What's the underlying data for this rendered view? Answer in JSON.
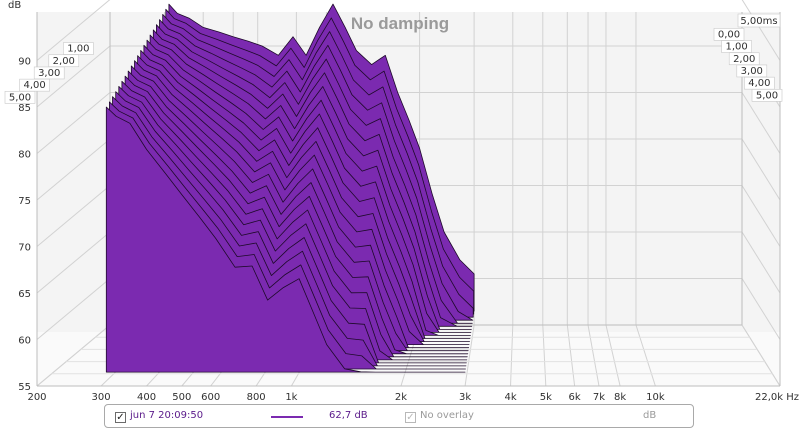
{
  "chart_data": {
    "type": "waterfall",
    "title": "No damping",
    "y_unit_label": "dB",
    "x_unit_label": "Hz",
    "x_scale": "log",
    "x_range": [
      200,
      22000
    ],
    "y_range": [
      55,
      90
    ],
    "x_ticks": [
      {
        "value": 200,
        "label": "200"
      },
      {
        "value": 300,
        "label": "300"
      },
      {
        "value": 400,
        "label": "400"
      },
      {
        "value": 500,
        "label": "500"
      },
      {
        "value": 600,
        "label": "600"
      },
      {
        "value": 800,
        "label": "800"
      },
      {
        "value": 1000,
        "label": "1k"
      },
      {
        "value": 2000,
        "label": "2k"
      },
      {
        "value": 3000,
        "label": "3k"
      },
      {
        "value": 4000,
        "label": "4k"
      },
      {
        "value": 5000,
        "label": "5k"
      },
      {
        "value": 6000,
        "label": "6k"
      },
      {
        "value": 7000,
        "label": "7k"
      },
      {
        "value": 8000,
        "label": "8k"
      },
      {
        "value": 10000,
        "label": "10k"
      },
      {
        "value": 22000,
        "label": "22,0k Hz"
      }
    ],
    "y_ticks": [
      {
        "value": 55,
        "label": "55"
      },
      {
        "value": 60,
        "label": "60"
      },
      {
        "value": 65,
        "label": "65"
      },
      {
        "value": 70,
        "label": "70"
      },
      {
        "value": 75,
        "label": "75"
      },
      {
        "value": 80,
        "label": "80"
      },
      {
        "value": 85,
        "label": "85"
      },
      {
        "value": 90,
        "label": "90"
      }
    ],
    "time_unit_label": "5,00ms",
    "time_labels_left": [
      "1,00",
      "2,00",
      "3,00",
      "4,00",
      "5,00"
    ],
    "time_labels_right": [
      "0,00",
      "1,00",
      "2,00",
      "3,00",
      "4,00",
      "5,00"
    ],
    "time_slices_ms": [
      0.0,
      0.25,
      0.5,
      0.75,
      1.0,
      1.25,
      1.5,
      1.75,
      2.0,
      2.25,
      2.5,
      2.75,
      3.0,
      3.25,
      3.5,
      3.75,
      4.0,
      4.25,
      4.5,
      4.75,
      5.0
    ],
    "freq_points_hz": [
      310,
      330,
      360,
      400,
      450,
      500,
      560,
      620,
      700,
      780,
      860,
      950,
      1050,
      1150,
      1250,
      1400,
      1550,
      1700,
      1850,
      2000,
      2200,
      2400,
      2700,
      3000
    ],
    "response_0ms_db": [
      89.5,
      88.5,
      88.0,
      87.0,
      86.5,
      86.0,
      85.5,
      85.0,
      84.0,
      86.0,
      84.0,
      87.0,
      89.5,
      87.0,
      84.5,
      83.0,
      84.0,
      80.0,
      77.0,
      74.0,
      69.0,
      65.0,
      62.0,
      60.5
    ],
    "floor_db": 56.5,
    "fill_color": "#7b2ab0",
    "edge_color": "#1e0a2a",
    "grid": true
  },
  "legend": {
    "measurement": "jun 7 20:09:50",
    "level": "62,7 dB",
    "overlay": "No overlay",
    "overlay_level": "dB",
    "measurement_color": "#7b2ab0"
  }
}
